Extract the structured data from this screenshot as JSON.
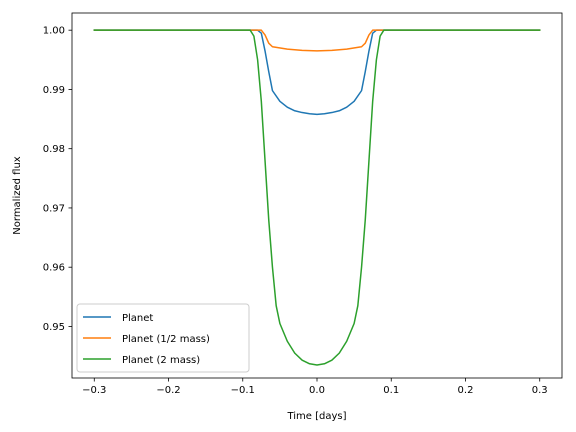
{
  "chart_data": {
    "type": "line",
    "title": "",
    "xlabel": "Time [days]",
    "ylabel": "Normalized flux",
    "xlim": [
      -0.33,
      0.33
    ],
    "ylim": [
      0.9413,
      1.0029
    ],
    "xticks": [
      -0.3,
      -0.2,
      -0.1,
      0.0,
      0.1,
      0.2,
      0.3
    ],
    "xtick_labels": [
      "−0.3",
      "−0.2",
      "−0.1",
      "0.0",
      "0.1",
      "0.2",
      "0.3"
    ],
    "yticks": [
      0.95,
      0.96,
      0.97,
      0.98,
      0.99,
      1.0
    ],
    "ytick_labels": [
      "0.95",
      "0.96",
      "0.97",
      "0.98",
      "0.99",
      "1.00"
    ],
    "grid": false,
    "legend_position": "lower-left",
    "series": [
      {
        "name": "Planet",
        "color": "#1f77b4",
        "x": [
          -0.3,
          -0.08,
          -0.075,
          -0.07,
          -0.065,
          -0.06,
          -0.05,
          -0.04,
          -0.03,
          -0.02,
          -0.01,
          0.0,
          0.01,
          0.02,
          0.03,
          0.04,
          0.05,
          0.06,
          0.065,
          0.07,
          0.075,
          0.08,
          0.3
        ],
        "y": [
          1.0,
          1.0,
          0.9995,
          0.9965,
          0.993,
          0.9898,
          0.988,
          0.987,
          0.9864,
          0.9861,
          0.9859,
          0.9858,
          0.9859,
          0.9861,
          0.9864,
          0.987,
          0.988,
          0.9898,
          0.993,
          0.9965,
          0.9995,
          1.0,
          1.0
        ]
      },
      {
        "name": "Planet (1/2 mass)",
        "color": "#ff7f0e",
        "x": [
          -0.3,
          -0.075,
          -0.07,
          -0.065,
          -0.06,
          -0.04,
          -0.02,
          0.0,
          0.02,
          0.04,
          0.06,
          0.065,
          0.07,
          0.075,
          0.3
        ],
        "y": [
          1.0,
          1.0,
          0.9992,
          0.9978,
          0.9972,
          0.9968,
          0.9966,
          0.9965,
          0.9966,
          0.9968,
          0.9972,
          0.9978,
          0.9992,
          1.0,
          1.0
        ]
      },
      {
        "name": "Planet (2 mass)",
        "color": "#2ca02c",
        "x": [
          -0.3,
          -0.09,
          -0.085,
          -0.08,
          -0.075,
          -0.07,
          -0.065,
          -0.06,
          -0.055,
          -0.05,
          -0.04,
          -0.03,
          -0.02,
          -0.01,
          0.0,
          0.01,
          0.02,
          0.03,
          0.04,
          0.05,
          0.055,
          0.06,
          0.065,
          0.07,
          0.075,
          0.08,
          0.085,
          0.09,
          0.3
        ],
        "y": [
          1.0,
          1.0,
          0.999,
          0.995,
          0.988,
          0.978,
          0.968,
          0.96,
          0.9535,
          0.9505,
          0.9475,
          0.9455,
          0.9443,
          0.9437,
          0.9435,
          0.9437,
          0.9443,
          0.9455,
          0.9475,
          0.9505,
          0.9535,
          0.96,
          0.968,
          0.978,
          0.988,
          0.995,
          0.999,
          1.0,
          1.0
        ]
      }
    ]
  }
}
